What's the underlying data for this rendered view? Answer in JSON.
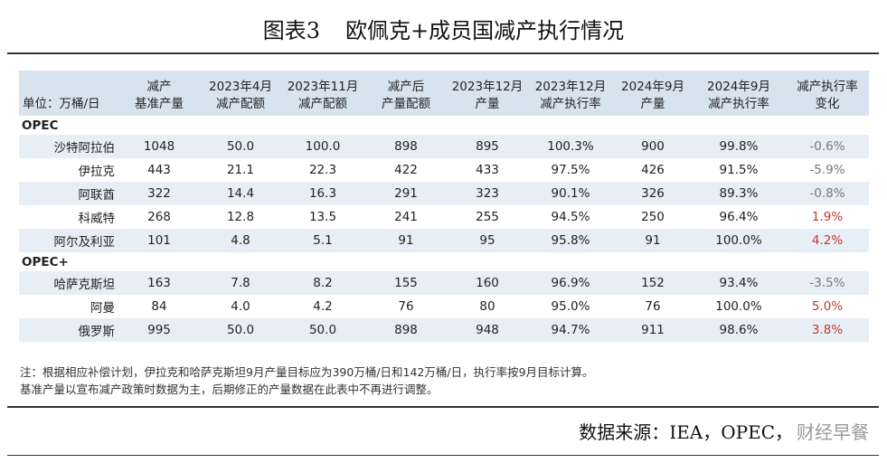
{
  "title": {
    "number": "图表3",
    "text": "欧佩克+成员国减产执行情况"
  },
  "table": {
    "unit_label": "单位：万桶/日",
    "headers": [
      [
        "减产",
        "基准产量"
      ],
      [
        "2023年4月",
        "减产配额"
      ],
      [
        "2023年11月",
        "减产配额"
      ],
      [
        "减产后",
        "产量配额"
      ],
      [
        "2023年12月",
        "产量"
      ],
      [
        "2023年12月",
        "减产执行率"
      ],
      [
        "2024年9月",
        "产量"
      ],
      [
        "2024年9月",
        "减产执行率"
      ],
      [
        "减产执行率",
        "变化"
      ]
    ],
    "groups": [
      {
        "name": "OPEC",
        "rows": [
          {
            "name": "沙特阿拉伯",
            "values": [
              "1048",
              "50.0",
              "100.0",
              "898",
              "895",
              "100.3%",
              "900",
              "99.8%",
              "-0.6%"
            ]
          },
          {
            "name": "伊拉克",
            "values": [
              "443",
              "21.1",
              "22.3",
              "422",
              "433",
              "97.5%",
              "426",
              "91.5%",
              "-5.9%"
            ]
          },
          {
            "name": "阿联酋",
            "values": [
              "322",
              "14.4",
              "16.3",
              "291",
              "323",
              "90.1%",
              "326",
              "89.3%",
              "-0.8%"
            ]
          },
          {
            "name": "科威特",
            "values": [
              "268",
              "12.8",
              "13.5",
              "241",
              "255",
              "94.5%",
              "250",
              "96.4%",
              "1.9%"
            ]
          },
          {
            "name": "阿尔及利亚",
            "values": [
              "101",
              "4.8",
              "5.1",
              "91",
              "95",
              "95.8%",
              "91",
              "100.0%",
              "4.2%"
            ]
          }
        ]
      },
      {
        "name": "OPEC+",
        "rows": [
          {
            "name": "哈萨克斯坦",
            "values": [
              "163",
              "7.8",
              "8.2",
              "155",
              "160",
              "96.9%",
              "152",
              "93.4%",
              "-3.5%"
            ]
          },
          {
            "name": "阿曼",
            "values": [
              "84",
              "4.0",
              "4.2",
              "76",
              "80",
              "95.0%",
              "76",
              "100.0%",
              "5.0%"
            ]
          },
          {
            "name": "俄罗斯",
            "values": [
              "995",
              "50.0",
              "50.0",
              "898",
              "948",
              "94.7%",
              "911",
              "98.6%",
              "3.8%"
            ]
          }
        ]
      }
    ]
  },
  "notes": [
    "注：根据相应补偿计划，伊拉克和哈萨克斯坦9月产量目标应为390万桶/日和142万桶/日，执行率按9月目标计算。",
    "基准产量以宣布减产政策时数据为主，后期修正的产量数据在此表中不再进行调整。"
  ],
  "source": {
    "text": "数据来源：IEA，OPEC，",
    "watermark": "财经早餐"
  },
  "colors": {
    "header_bg": "#d8e3f0",
    "alt_row_bg": "#e8eef6",
    "positive_change": "#c0392b",
    "negative_change": "#777777"
  }
}
